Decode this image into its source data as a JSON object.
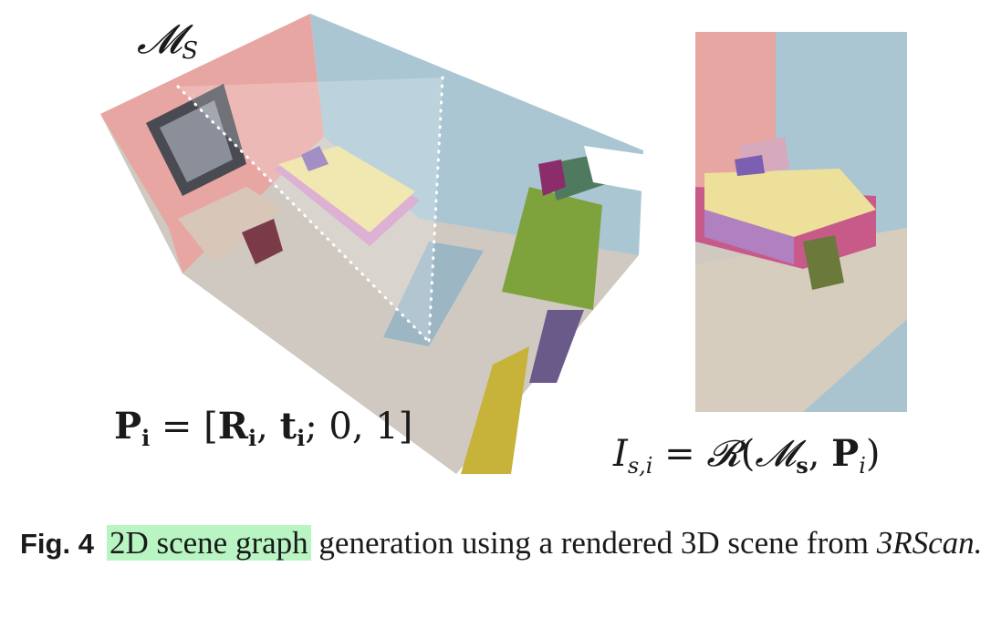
{
  "figure": {
    "mesh_label": {
      "base": "𝓜",
      "sub": "S"
    },
    "pose_equation": {
      "P": "P",
      "i": "i",
      "eq": " = [",
      "R": "R",
      "comma": ", ",
      "t": "t",
      "tail": "; 0, 1]"
    },
    "render_equation": {
      "I": "I",
      "sub": "s,i",
      "eq": " = ",
      "Rcal": "𝓡",
      "open": "(",
      "M": "𝓜",
      "Msub": "s",
      "comma": ", ",
      "P": "P",
      "Psub": "i",
      "close": ")"
    },
    "colors": {
      "wall_red": "#e7a6a2",
      "wall_blue": "#aac6d3",
      "floor": "#cfc9c1",
      "bed_pink": "#d39bc8",
      "green_object": "#7ea23c",
      "highlight": "#b9f5c2"
    }
  },
  "caption": {
    "fig_label": "Fig. 4",
    "highlight": "2D scene graph",
    "text": " generation using a rendered 3D scene from ",
    "source": "3RScan."
  }
}
